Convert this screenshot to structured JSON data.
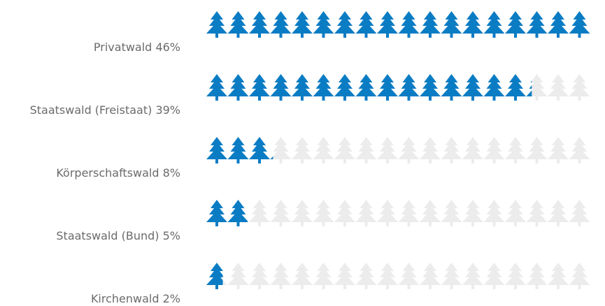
{
  "colors": {
    "filled": "#0a7cc4",
    "empty": "#ececec",
    "label": "#6b6b6b"
  },
  "icon": "pine-tree-icon",
  "chart_data": {
    "type": "bar",
    "style": "pictogram",
    "icons_per_row": 18,
    "max_value": 46,
    "categories": [
      {
        "name": "Privatwald",
        "value_label": "46%"
      },
      {
        "name": "Staatswald (Freistaat)",
        "value_label": "39%"
      },
      {
        "name": "Körperschaftswald",
        "value_label": "8%"
      },
      {
        "name": "Staatswald (Bund)",
        "value_label": "5%"
      },
      {
        "name": "Kirchenwald",
        "value_label": "2%"
      }
    ],
    "values": [
      46,
      39,
      8,
      5,
      2
    ],
    "unit": "%"
  }
}
